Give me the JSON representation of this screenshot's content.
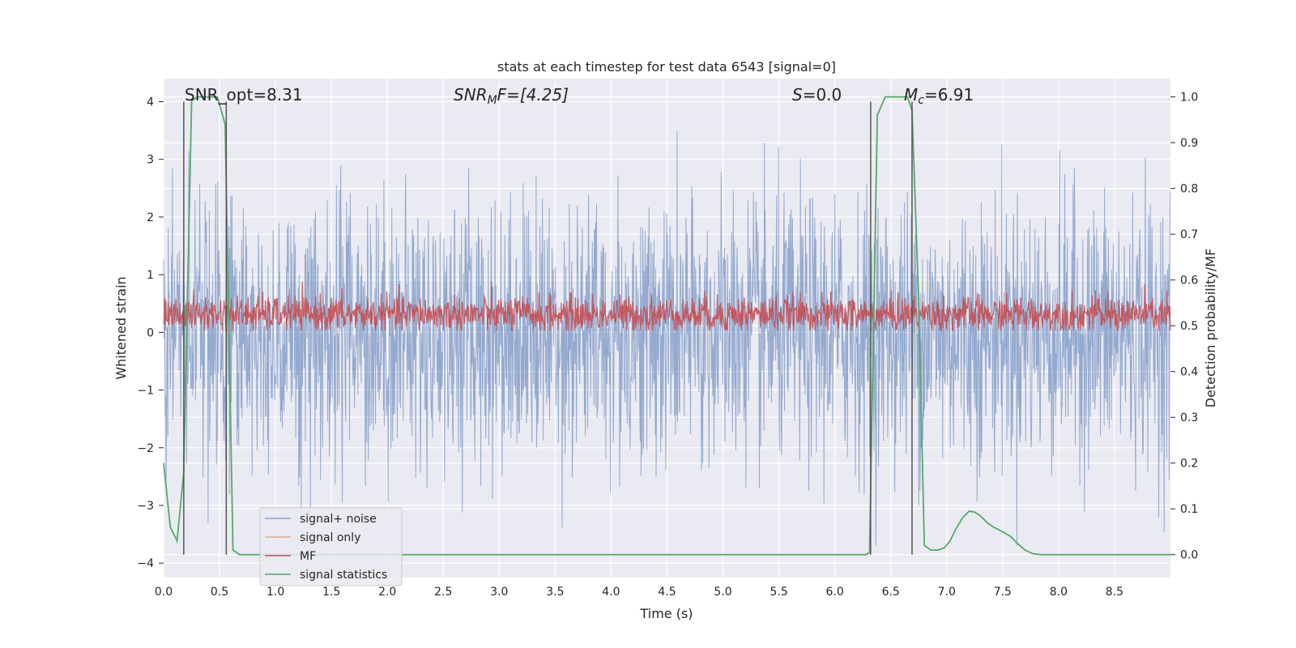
{
  "chart_data": {
    "type": "line",
    "title": "stats at each timestep for test data 6543 [signal=0]",
    "xlabel": "Time (s)",
    "ylabel_left": "Whitened strain",
    "ylabel_right": "Detection probability/MF",
    "xlim": [
      0,
      9.0
    ],
    "ylim_left": [
      -4.25,
      4.4
    ],
    "ylim_right": [
      -0.05,
      1.04
    ],
    "x_ticks": [
      "0.0",
      "0.5",
      "1.0",
      "1.5",
      "2.0",
      "2.5",
      "3.0",
      "3.5",
      "4.0",
      "4.5",
      "5.0",
      "5.5",
      "6.0",
      "6.5",
      "7.0",
      "7.5",
      "8.0",
      "8.5"
    ],
    "y_left_ticks": [
      "−4",
      "−3",
      "−2",
      "−1",
      "0",
      "1",
      "2",
      "3",
      "4"
    ],
    "y_right_ticks": [
      "0.0",
      "0.1",
      "0.2",
      "0.3",
      "0.4",
      "0.5",
      "0.6",
      "0.7",
      "0.8",
      "0.9",
      "1.0"
    ],
    "grid": true,
    "legend_position": "lower-left",
    "annotations": {
      "snr_opt": "SNR_opt=8.31",
      "snr_mf_prefix": "SNR",
      "snr_mf_sub": "M",
      "snr_mf_suffix": "F=[4.25]",
      "s_var": "S",
      "s_value": "=0.0",
      "mc_var": "M",
      "mc_sub": "c",
      "mc_value": "=6.91"
    },
    "vertical_markers_s": [
      0.18,
      0.56,
      6.32,
      6.69
    ],
    "series": [
      {
        "name": "signal+ noise",
        "color": "#4c72b0",
        "axis": "left",
        "description_range": [
          -3.7,
          3.9
        ]
      },
      {
        "name": "signal only",
        "color": "#dd8452",
        "axis": "left"
      },
      {
        "name": "MF",
        "color": "#c44e52",
        "axis": "right",
        "range": [
          0.49,
          0.62
        ]
      },
      {
        "name": "signal statistics",
        "color": "#55a868",
        "axis": "right",
        "x": [
          0.0,
          0.06,
          0.12,
          0.18,
          0.25,
          0.3,
          0.4,
          0.48,
          0.55,
          0.62,
          0.68,
          0.75,
          1.0,
          2.0,
          3.0,
          4.0,
          5.0,
          6.0,
          6.28,
          6.31,
          6.38,
          6.45,
          6.55,
          6.65,
          6.69,
          6.75,
          6.8,
          6.86,
          6.92,
          6.98,
          7.03,
          7.08,
          7.14,
          7.2,
          7.25,
          7.3,
          7.36,
          7.42,
          7.5,
          7.57,
          7.63,
          7.7,
          7.77,
          7.85,
          8.0,
          8.5,
          9.0
        ],
        "y": [
          0.2,
          0.06,
          0.03,
          0.18,
          0.99,
          1.0,
          1.0,
          1.0,
          0.94,
          0.01,
          0.0,
          0.0,
          0.0,
          0.0,
          0.0,
          0.0,
          0.0,
          0.0,
          0.0,
          0.005,
          0.96,
          1.0,
          1.0,
          1.0,
          0.97,
          0.55,
          0.02,
          0.01,
          0.01,
          0.015,
          0.03,
          0.055,
          0.08,
          0.095,
          0.093,
          0.085,
          0.07,
          0.06,
          0.05,
          0.04,
          0.025,
          0.01,
          0.002,
          0.0,
          0.0,
          0.0,
          0.0
        ]
      }
    ]
  }
}
